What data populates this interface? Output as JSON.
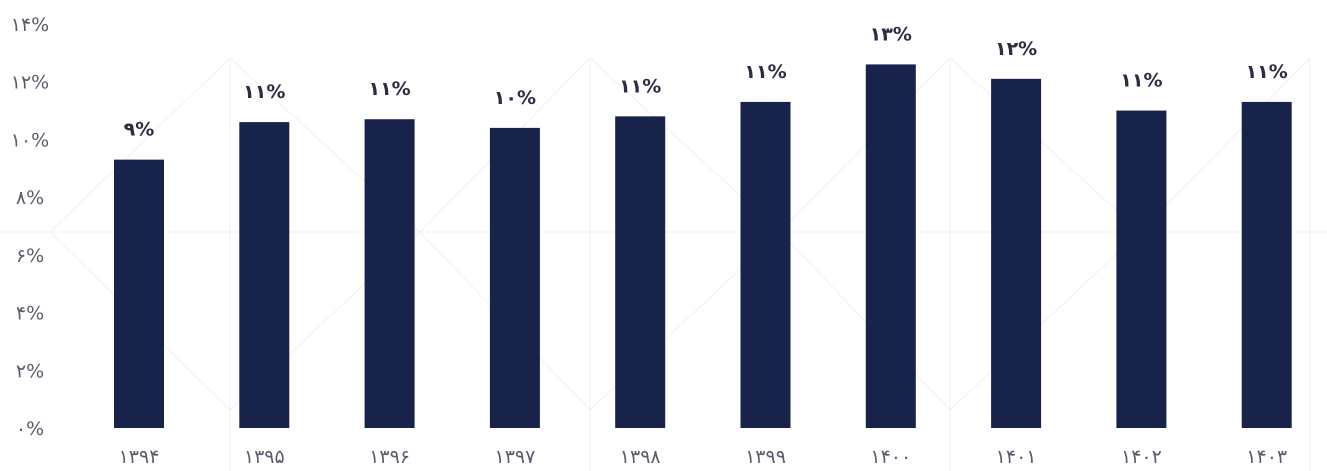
{
  "chart_data": {
    "type": "bar",
    "categories": [
      "۱۳۹۴",
      "۱۳۹۵",
      "۱۳۹۶",
      "۱۳۹۷",
      "۱۳۹۸",
      "۱۳۹۹",
      "۱۴۰۰",
      "۱۴۰۱",
      "۱۴۰۲",
      "۱۴۰۳"
    ],
    "values": [
      9.3,
      10.6,
      10.7,
      10.4,
      10.8,
      11.3,
      12.6,
      12.1,
      11.0,
      11.3
    ],
    "data_labels": [
      "۹%",
      "۱۱%",
      "۱۱%",
      "۱۰%",
      "۱۱%",
      "۱۱%",
      "۱۳%",
      "۱۲%",
      "۱۱%",
      "۱۱%"
    ],
    "y_ticks": [
      "۰%",
      "۲%",
      "۴%",
      "۶%",
      "۸%",
      "۱۰%",
      "۱۲%",
      "۱۴%"
    ],
    "ylim": [
      0,
      14
    ],
    "grid": false,
    "title": "",
    "xlabel": "",
    "ylabel": "",
    "bar_color": "#17234a"
  }
}
